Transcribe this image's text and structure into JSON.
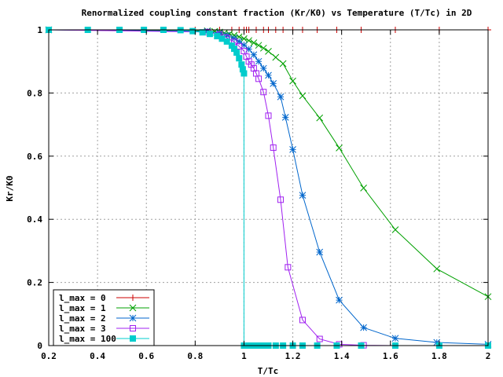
{
  "chart_data": {
    "type": "line",
    "title": "Renormalized coupling constant fraction (Kr/K0) vs Temperature (T/Tc) in 2D",
    "xlabel": "T/Tc",
    "ylabel": "Kr/K0",
    "xlim": [
      0.2,
      2
    ],
    "ylim": [
      0,
      1
    ],
    "xticks": [
      0.2,
      0.4,
      0.6,
      0.8,
      1,
      1.2,
      1.4,
      1.6,
      1.8,
      2
    ],
    "xtick_labels": [
      "0.2",
      "0.4",
      "0.6",
      "0.8",
      "1",
      "1.2",
      "1.4",
      "1.6",
      "1.8",
      "2"
    ],
    "yticks": [
      0,
      0.2,
      0.4,
      0.6,
      0.8,
      1
    ],
    "ytick_labels": [
      "0",
      "0.2",
      "0.4",
      "0.6",
      "0.8",
      "1"
    ],
    "grid": true,
    "legend_position": "bottom-left",
    "series": [
      {
        "name": "l_max = 0",
        "color": "#cc0000",
        "marker": "plus",
        "segments": [
          [
            [
              0.2,
              1
            ],
            [
              0.5,
              1
            ],
            [
              0.8,
              1
            ],
            [
              0.9,
              1
            ],
            [
              0.95,
              1
            ],
            [
              0.98,
              1
            ],
            [
              1.0,
              1
            ],
            [
              1.01,
              1
            ],
            [
              1.02,
              1
            ],
            [
              1.05,
              1
            ],
            [
              1.08,
              1
            ],
            [
              1.1,
              1
            ],
            [
              1.13,
              1
            ],
            [
              1.16,
              1
            ],
            [
              1.2,
              1
            ],
            [
              1.24,
              1
            ],
            [
              1.3,
              1
            ],
            [
              1.38,
              1
            ],
            [
              1.48,
              1
            ],
            [
              1.62,
              1
            ],
            [
              1.8,
              1
            ],
            [
              2.0,
              1
            ]
          ]
        ]
      },
      {
        "name": "l_max = 1",
        "color": "#00a000",
        "marker": "x",
        "segments": [
          [
            [
              0.2,
              1
            ],
            [
              0.85,
              0.997
            ],
            [
              0.88,
              0.995
            ],
            [
              0.9,
              0.993
            ],
            [
              0.92,
              0.99
            ],
            [
              0.94,
              0.987
            ],
            [
              0.96,
              0.983
            ],
            [
              0.98,
              0.978
            ],
            [
              1.0,
              0.972
            ],
            [
              1.02,
              0.966
            ],
            [
              1.04,
              0.959
            ],
            [
              1.06,
              0.951
            ],
            [
              1.08,
              0.942
            ],
            [
              1.1,
              0.932
            ],
            [
              1.13,
              0.913
            ],
            [
              1.16,
              0.893
            ],
            [
              1.2,
              0.838
            ],
            [
              1.24,
              0.791
            ],
            [
              1.31,
              0.721
            ],
            [
              1.39,
              0.626
            ],
            [
              1.49,
              0.499
            ],
            [
              1.62,
              0.367
            ],
            [
              1.79,
              0.243
            ],
            [
              2.0,
              0.155
            ]
          ]
        ]
      },
      {
        "name": "l_max = 2",
        "color": "#0066cc",
        "marker": "star",
        "segments": [
          [
            [
              0.2,
              1
            ],
            [
              0.85,
              0.995
            ],
            [
              0.9,
              0.99
            ],
            [
              0.93,
              0.983
            ],
            [
              0.96,
              0.973
            ],
            [
              0.98,
              0.963
            ],
            [
              1.0,
              0.952
            ],
            [
              1.02,
              0.939
            ],
            [
              1.04,
              0.921
            ],
            [
              1.06,
              0.9
            ],
            [
              1.08,
              0.878
            ],
            [
              1.1,
              0.856
            ],
            [
              1.12,
              0.83
            ],
            [
              1.15,
              0.788
            ],
            [
              1.17,
              0.723
            ],
            [
              1.2,
              0.621
            ],
            [
              1.24,
              0.476
            ],
            [
              1.31,
              0.296
            ],
            [
              1.39,
              0.144
            ],
            [
              1.49,
              0.057
            ],
            [
              1.62,
              0.023
            ],
            [
              1.79,
              0.01
            ],
            [
              2.0,
              0.004
            ]
          ]
        ]
      },
      {
        "name": "l_max = 3",
        "color": "#a020f0",
        "marker": "square",
        "segments": [
          [
            [
              0.2,
              1
            ],
            [
              0.85,
              0.993
            ],
            [
              0.9,
              0.985
            ],
            [
              0.93,
              0.975
            ],
            [
              0.96,
              0.962
            ],
            [
              0.98,
              0.948
            ],
            [
              1.0,
              0.933
            ],
            [
              1.01,
              0.915
            ],
            [
              1.02,
              0.9
            ],
            [
              1.03,
              0.89
            ],
            [
              1.04,
              0.878
            ],
            [
              1.05,
              0.862
            ],
            [
              1.06,
              0.845
            ],
            [
              1.08,
              0.803
            ],
            [
              1.1,
              0.728
            ],
            [
              1.12,
              0.627
            ],
            [
              1.15,
              0.462
            ],
            [
              1.18,
              0.248
            ],
            [
              1.24,
              0.081
            ],
            [
              1.31,
              0.021
            ],
            [
              1.39,
              0.004
            ],
            [
              1.49,
              0.001
            ],
            [
              1.62,
              0
            ],
            [
              2.0,
              0
            ]
          ]
        ]
      },
      {
        "name": "l_max = 100",
        "color": "#00cccc",
        "marker": "filled-square",
        "segments": [
          [
            [
              0.2,
              1
            ],
            [
              0.36,
              1
            ],
            [
              0.49,
              1
            ],
            [
              0.59,
              1
            ],
            [
              0.67,
              1
            ],
            [
              0.74,
              0.999
            ],
            [
              0.79,
              0.996
            ],
            [
              0.83,
              0.992
            ],
            [
              0.86,
              0.987
            ],
            [
              0.89,
              0.98
            ],
            [
              0.91,
              0.972
            ],
            [
              0.93,
              0.963
            ],
            [
              0.95,
              0.95
            ],
            [
              0.96,
              0.94
            ],
            [
              0.97,
              0.928
            ],
            [
              0.98,
              0.91
            ],
            [
              0.99,
              0.89
            ],
            [
              0.995,
              0.875
            ],
            [
              1.0,
              0.862
            ],
            [
              1.0,
              0
            ]
          ],
          [
            [
              1.0,
              0
            ],
            [
              1.01,
              0
            ],
            [
              1.02,
              0
            ],
            [
              1.03,
              0
            ],
            [
              1.04,
              0
            ],
            [
              1.06,
              0
            ],
            [
              1.08,
              0
            ],
            [
              1.1,
              0
            ],
            [
              1.13,
              0
            ],
            [
              1.16,
              0
            ],
            [
              1.2,
              0
            ],
            [
              1.24,
              0
            ],
            [
              1.3,
              0
            ],
            [
              1.38,
              0
            ],
            [
              1.48,
              0
            ],
            [
              1.62,
              0
            ],
            [
              1.8,
              0
            ],
            [
              2.0,
              0
            ]
          ]
        ]
      }
    ]
  }
}
